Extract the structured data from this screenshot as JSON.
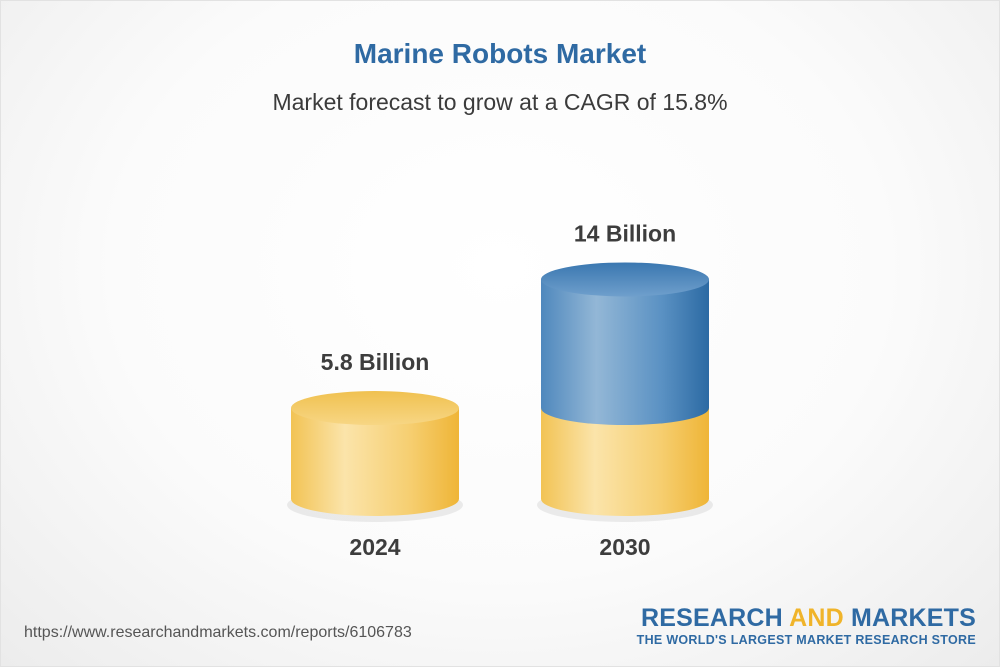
{
  "title": "Marine Robots Market",
  "subtitle": "Market forecast to grow at a CAGR of 15.8%",
  "chart_data": {
    "type": "bar",
    "style": "3d-cylinder",
    "title": "Marine Robots Market",
    "subtitle": "Market forecast to grow at a CAGR of 15.8%",
    "categories": [
      "2024",
      "2030"
    ],
    "values": [
      5.8,
      14
    ],
    "data_labels": [
      "5.8 Billion",
      "14 Billion"
    ],
    "cagr_percent": 15.8,
    "xlabel": "",
    "ylabel": "",
    "grid": false,
    "legend": "none",
    "colors": {
      "base_value": "#f4c65c",
      "growth": "#3f7db3"
    }
  },
  "footer": {
    "source_url": "https://www.researchandmarkets.com/reports/6106783",
    "brand_part1": "RESEARCH ",
    "brand_part2": "AND",
    "brand_part3": " MARKETS",
    "brand_tagline": "THE WORLD'S LARGEST MARKET RESEARCH STORE"
  },
  "icons": [
    "research-and-markets-logo"
  ]
}
